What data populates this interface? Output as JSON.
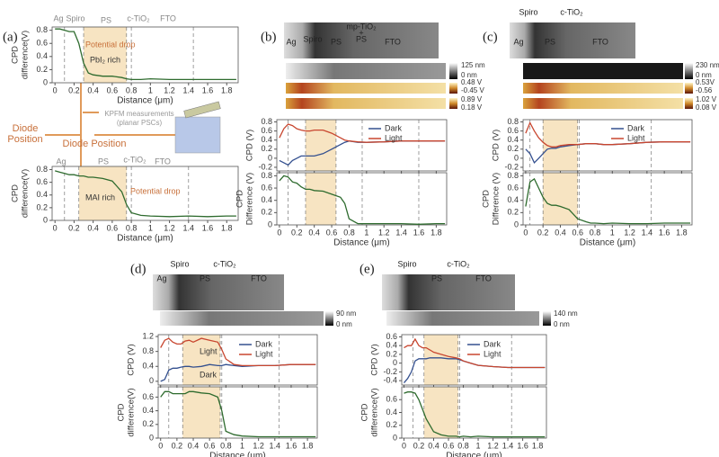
{
  "figure": {
    "diode_labels": [
      "Diode",
      "Position",
      "Diode Position"
    ],
    "kpfm_label": [
      "KPFM measurements",
      "(planar PSCs)"
    ]
  },
  "chart_data": [
    {
      "type": "line",
      "panel": "(a)",
      "layer_labels": [
        "Ag",
        "Spiro",
        "PS",
        "c-TiO₂",
        "FTO"
      ],
      "annotations": [
        "Potential drop",
        "PbI₂ rich"
      ],
      "ylabel": [
        "CPD",
        "difference(V)"
      ],
      "xlabel": "Distance (μm)",
      "x": [
        0,
        0.05,
        0.1,
        0.15,
        0.2,
        0.25,
        0.3,
        0.35,
        0.4,
        0.5,
        0.6,
        0.7,
        0.75,
        0.8,
        0.9,
        1.0,
        1.2,
        1.4,
        1.6,
        1.8,
        1.9
      ],
      "series": [
        {
          "name": null,
          "color": "#2e6b2e",
          "values": [
            0.82,
            0.82,
            0.8,
            0.78,
            0.78,
            0.6,
            0.3,
            0.15,
            0.12,
            0.1,
            0.1,
            0.08,
            0.06,
            0.05,
            0.05,
            0.06,
            0.05,
            0.05,
            0.05,
            0.05,
            0.05
          ]
        }
      ],
      "xlim": [
        -0.03,
        1.92
      ],
      "ylim": [
        0,
        0.85
      ],
      "xticks": [
        0,
        0.2,
        0.4,
        0.6,
        0.8,
        1,
        1.2,
        1.4,
        1.6,
        1.8
      ],
      "yticks": [
        0,
        0.2,
        0.4,
        0.6,
        0.8
      ],
      "boundaries": [
        0.1,
        0.3,
        0.75,
        0.8,
        1.45
      ],
      "shade": [
        0.3,
        0.75
      ]
    },
    {
      "type": "line",
      "layer_labels": [
        "Ag",
        "PS",
        "c-TiO₂",
        "FTO"
      ],
      "annotations": [
        "MAI rich",
        "Potential drop"
      ],
      "ylabel": [
        "CPD",
        "difference(V)"
      ],
      "xlabel": "Distance (μm)",
      "x": [
        0,
        0.05,
        0.1,
        0.15,
        0.2,
        0.25,
        0.3,
        0.35,
        0.4,
        0.5,
        0.6,
        0.7,
        0.75,
        0.8,
        0.9,
        1.0,
        1.2,
        1.4,
        1.6,
        1.8,
        1.9
      ],
      "series": [
        {
          "name": null,
          "color": "#2e6b2e",
          "values": [
            0.78,
            0.76,
            0.74,
            0.72,
            0.72,
            0.7,
            0.7,
            0.68,
            0.68,
            0.66,
            0.62,
            0.45,
            0.25,
            0.12,
            0.08,
            0.07,
            0.06,
            0.07,
            0.06,
            0.07,
            0.07
          ]
        }
      ],
      "xlim": [
        -0.03,
        1.92
      ],
      "ylim": [
        0,
        0.85
      ],
      "xticks": [
        0,
        0.2,
        0.4,
        0.6,
        0.8,
        1,
        1.2,
        1.4,
        1.6,
        1.8
      ],
      "yticks": [
        0,
        0.2,
        0.4,
        0.6,
        0.8
      ],
      "boundaries": [
        0.1,
        0.25,
        0.75,
        0.8,
        1.4
      ],
      "shade": [
        0.25,
        0.75
      ]
    },
    {
      "type": "line",
      "panel": "(b)",
      "layer_labels": [
        "Ag",
        "Spiro",
        "PS",
        "mp-TiO₂",
        "+",
        "PS",
        "FTO"
      ],
      "scale_labels": [
        "125 nm",
        "0 nm",
        "0.48 V",
        "-0.45 V",
        "0.89 V",
        "0.18 V"
      ],
      "ylabel": [
        "CPD (V)"
      ],
      "x": [
        0,
        0.05,
        0.1,
        0.15,
        0.2,
        0.25,
        0.3,
        0.35,
        0.4,
        0.5,
        0.6,
        0.7,
        0.75,
        0.8,
        0.9,
        1.0,
        1.2,
        1.4,
        1.6,
        1.8,
        1.9
      ],
      "series": [
        {
          "name": "Dark",
          "color": "#34508f",
          "values": [
            -0.05,
            -0.1,
            -0.15,
            -0.05,
            0,
            0.05,
            0.05,
            0.05,
            0.05,
            0.1,
            0.2,
            0.3,
            0.35,
            0.38,
            0.35,
            0.35,
            0.36,
            0.38,
            0.38,
            0.38,
            0.38
          ]
        },
        {
          "name": "Light",
          "color": "#c8462f",
          "values": [
            0.45,
            0.65,
            0.75,
            0.72,
            0.65,
            0.62,
            0.6,
            0.6,
            0.62,
            0.62,
            0.55,
            0.45,
            0.4,
            0.38,
            0.36,
            0.35,
            0.36,
            0.38,
            0.38,
            0.38,
            0.38
          ]
        }
      ],
      "xlim": [
        -0.03,
        1.92
      ],
      "ylim": [
        -0.28,
        0.85
      ],
      "xticks": [
        0,
        0.2,
        0.4,
        0.6,
        0.8,
        1,
        1.2,
        1.4,
        1.6,
        1.8
      ],
      "yticks": [
        -0.2,
        0,
        0.2,
        0.4,
        0.6,
        0.8
      ],
      "boundaries": [
        0.1,
        0.3,
        0.65,
        0.95,
        1.6
      ],
      "shade": [
        0.3,
        0.65
      ]
    },
    {
      "type": "line",
      "ylabel": [
        "CPD",
        "Difference (V)"
      ],
      "xlabel": "Distance (μm)",
      "x": [
        0,
        0.05,
        0.1,
        0.15,
        0.2,
        0.25,
        0.3,
        0.35,
        0.4,
        0.5,
        0.6,
        0.7,
        0.75,
        0.8,
        0.9,
        1.0,
        1.2,
        1.4,
        1.6,
        1.8,
        1.9
      ],
      "series": [
        {
          "name": null,
          "color": "#2e6b2e",
          "values": [
            0.72,
            0.8,
            0.78,
            0.7,
            0.68,
            0.62,
            0.58,
            0.58,
            0.56,
            0.55,
            0.5,
            0.45,
            0.35,
            0.1,
            0.02,
            0.02,
            0.02,
            0.02,
            0.01,
            0.02,
            0.02
          ]
        }
      ],
      "xlim": [
        -0.03,
        1.92
      ],
      "ylim": [
        0,
        0.85
      ],
      "xticks": [
        0,
        0.2,
        0.4,
        0.6,
        0.8,
        1,
        1.2,
        1.4,
        1.6,
        1.8
      ],
      "yticks": [
        0,
        0.2,
        0.4,
        0.6,
        0.8
      ],
      "boundaries": [
        0.1,
        0.3,
        0.65,
        0.95,
        1.6
      ],
      "shade": [
        0.3,
        0.65
      ]
    },
    {
      "type": "line",
      "panel": "(c)",
      "layer_labels": [
        "Spiro",
        "c-TiO₂",
        "Ag",
        "PS",
        "FTO"
      ],
      "scale_labels": [
        "230 nm",
        "0 nm",
        "0.53V",
        "-0.56",
        "1.02 V",
        "0.08 V"
      ],
      "ylabel": [
        "CPD (V)"
      ],
      "x": [
        0,
        0.05,
        0.1,
        0.15,
        0.2,
        0.25,
        0.3,
        0.35,
        0.4,
        0.5,
        0.6,
        0.7,
        0.75,
        0.8,
        0.9,
        1.0,
        1.2,
        1.4,
        1.6,
        1.8,
        1.9
      ],
      "series": [
        {
          "name": "Dark",
          "color": "#34508f",
          "values": [
            0.2,
            0.1,
            -0.1,
            0,
            0.1,
            0.2,
            0.22,
            0.22,
            0.25,
            0.28,
            0.3,
            0.32,
            0.32,
            0.32,
            0.3,
            0.3,
            0.32,
            0.35,
            0.36,
            0.36,
            0.36
          ]
        },
        {
          "name": "Light",
          "color": "#c8462f",
          "values": [
            0.55,
            0.78,
            0.6,
            0.45,
            0.35,
            0.28,
            0.25,
            0.25,
            0.28,
            0.3,
            0.3,
            0.32,
            0.32,
            0.32,
            0.3,
            0.3,
            0.32,
            0.35,
            0.36,
            0.36,
            0.36
          ]
        }
      ],
      "xlim": [
        -0.03,
        1.92
      ],
      "ylim": [
        -0.28,
        0.85
      ],
      "xticks": [
        0,
        0.2,
        0.4,
        0.6,
        0.8,
        1,
        1.2,
        1.4,
        1.6,
        1.8
      ],
      "yticks": [
        -0.2,
        0,
        0.2,
        0.4,
        0.6,
        0.8
      ],
      "boundaries": [
        0.05,
        0.2,
        0.6,
        0.62,
        1.45
      ],
      "shade": [
        0.2,
        0.6
      ]
    },
    {
      "type": "line",
      "ylabel": [
        "CPD",
        "Difference (V)"
      ],
      "xlabel": "Distance (μm)",
      "x": [
        0,
        0.05,
        0.1,
        0.15,
        0.2,
        0.25,
        0.3,
        0.35,
        0.4,
        0.5,
        0.6,
        0.7,
        0.75,
        0.8,
        0.9,
        1.0,
        1.2,
        1.4,
        1.6,
        1.8,
        1.9
      ],
      "series": [
        {
          "name": null,
          "color": "#2e6b2e",
          "values": [
            0.3,
            0.7,
            0.75,
            0.6,
            0.45,
            0.35,
            0.32,
            0.32,
            0.3,
            0.25,
            0.1,
            0.05,
            0.03,
            0.03,
            0.02,
            0.03,
            0.02,
            0.02,
            0.03,
            0.03,
            0.03
          ]
        }
      ],
      "xlim": [
        -0.03,
        1.92
      ],
      "ylim": [
        0,
        0.85
      ],
      "xticks": [
        0,
        0.2,
        0.4,
        0.6,
        0.8,
        1,
        1.2,
        1.4,
        1.6,
        1.8
      ],
      "yticks": [
        0,
        0.2,
        0.4,
        0.6,
        0.8
      ],
      "boundaries": [
        0.05,
        0.2,
        0.6,
        0.62,
        1.45
      ],
      "shade": [
        0.2,
        0.6
      ]
    },
    {
      "type": "line",
      "panel": "(d)",
      "layer_labels": [
        "Spiro",
        "c-TiO₂",
        "Ag",
        "PS",
        "FTO"
      ],
      "scale_labels": [
        "90 nm",
        "0 nm"
      ],
      "annotations": [
        "Light",
        "Dark"
      ],
      "ylabel": [
        "CPD (V)"
      ],
      "x": [
        0,
        0.05,
        0.1,
        0.15,
        0.2,
        0.25,
        0.3,
        0.35,
        0.4,
        0.5,
        0.6,
        0.7,
        0.75,
        0.8,
        0.9,
        1.0,
        1.2,
        1.4,
        1.6,
        1.8,
        1.9
      ],
      "series": [
        {
          "name": "Dark",
          "color": "#34508f",
          "values": [
            0,
            0.05,
            0.3,
            0.35,
            0.35,
            0.38,
            0.4,
            0.4,
            0.38,
            0.4,
            0.45,
            0.42,
            0.42,
            0.45,
            0.42,
            0.4,
            0.42,
            0.42,
            0.45,
            0.45,
            0.45
          ]
        },
        {
          "name": "Light",
          "color": "#c8462f",
          "values": [
            0.9,
            1.1,
            1.15,
            1.05,
            1.0,
            1.0,
            1.08,
            1.1,
            1.05,
            1.15,
            1.1,
            1.05,
            0.85,
            0.6,
            0.45,
            0.42,
            0.42,
            0.42,
            0.45,
            0.45,
            0.45
          ]
        }
      ],
      "xlim": [
        -0.03,
        1.92
      ],
      "ylim": [
        -0.1,
        1.25
      ],
      "xticks": [
        0,
        0.2,
        0.4,
        0.6,
        0.8,
        1,
        1.2,
        1.4,
        1.6,
        1.8
      ],
      "yticks": [
        0,
        0.4,
        0.8,
        1.2
      ],
      "boundaries": [
        0.1,
        0.27,
        0.73,
        0.75,
        1.45
      ],
      "shade": [
        0.27,
        0.73
      ]
    },
    {
      "type": "line",
      "ylabel": [
        "CPD",
        "difference(V)"
      ],
      "xlabel": "Distance (μm)",
      "x": [
        0,
        0.05,
        0.1,
        0.15,
        0.2,
        0.25,
        0.3,
        0.35,
        0.4,
        0.5,
        0.6,
        0.7,
        0.75,
        0.8,
        0.9,
        1.0,
        1.2,
        1.4,
        1.6,
        1.8,
        1.9
      ],
      "series": [
        {
          "name": null,
          "color": "#2e6b2e",
          "values": [
            0.6,
            0.68,
            0.68,
            0.65,
            0.65,
            0.65,
            0.65,
            0.68,
            0.68,
            0.66,
            0.65,
            0.6,
            0.4,
            0.1,
            0.05,
            0.03,
            0.02,
            0.02,
            0.02,
            0.02,
            0.02
          ]
        }
      ],
      "xlim": [
        -0.03,
        1.92
      ],
      "ylim": [
        0,
        0.75
      ],
      "xticks": [
        0,
        0.2,
        0.4,
        0.6,
        0.8,
        1,
        1.2,
        1.4,
        1.6,
        1.8
      ],
      "yticks": [
        0,
        0.2,
        0.4,
        0.6
      ],
      "boundaries": [
        0.1,
        0.27,
        0.73,
        0.75,
        1.45
      ],
      "shade": [
        0.27,
        0.73
      ]
    },
    {
      "type": "line",
      "panel": "(e)",
      "layer_labels": [
        "Spiro",
        "c-TiO₂",
        "PS",
        "FTO"
      ],
      "scale_labels": [
        "140 nm",
        "0 nm"
      ],
      "ylabel": [
        "CPD (V)"
      ],
      "x": [
        0,
        0.05,
        0.1,
        0.15,
        0.2,
        0.25,
        0.3,
        0.35,
        0.4,
        0.5,
        0.6,
        0.7,
        0.75,
        0.8,
        0.9,
        1.0,
        1.2,
        1.4,
        1.6,
        1.8,
        1.9
      ],
      "series": [
        {
          "name": "Dark",
          "color": "#34508f",
          "values": [
            -0.45,
            -0.35,
            -0.2,
            0.05,
            0.1,
            0.1,
            0.1,
            0.12,
            0.12,
            0.12,
            0.1,
            0.1,
            0.08,
            0.05,
            0,
            -0.05,
            -0.08,
            -0.1,
            -0.1,
            -0.1,
            -0.1
          ]
        },
        {
          "name": "Light",
          "color": "#c8462f",
          "values": [
            0.35,
            0.4,
            0.4,
            0.55,
            0.4,
            0.35,
            0.35,
            0.3,
            0.25,
            0.2,
            0.15,
            0.12,
            0.1,
            0.05,
            0,
            -0.05,
            -0.08,
            -0.1,
            -0.1,
            -0.1,
            -0.1
          ]
        }
      ],
      "xlim": [
        -0.03,
        1.92
      ],
      "ylim": [
        -0.5,
        0.65
      ],
      "xticks": [
        0,
        0.2,
        0.4,
        0.6,
        0.8,
        1,
        1.2,
        1.4,
        1.6,
        1.8
      ],
      "yticks": [
        -0.4,
        -0.2,
        0,
        0.2,
        0.4,
        0.6
      ],
      "boundaries": [
        0.12,
        0.27,
        0.73,
        0.75,
        1.45
      ],
      "shade": [
        0.27,
        0.73
      ]
    },
    {
      "type": "line",
      "ylabel": [
        "CPD",
        "difference(V)"
      ],
      "xlabel": "Distance (μm)",
      "x": [
        0,
        0.05,
        0.1,
        0.15,
        0.2,
        0.25,
        0.3,
        0.35,
        0.4,
        0.5,
        0.6,
        0.7,
        0.75,
        0.8,
        0.9,
        1.0,
        1.2,
        1.4,
        1.6,
        1.8,
        1.9
      ],
      "series": [
        {
          "name": null,
          "color": "#2e6b2e",
          "values": [
            0.7,
            0.72,
            0.72,
            0.7,
            0.6,
            0.45,
            0.3,
            0.2,
            0.1,
            0.05,
            0.03,
            0.03,
            0.02,
            0.03,
            0.02,
            0.03,
            0.02,
            0.02,
            0.02,
            0.02,
            0.02
          ]
        }
      ],
      "xlim": [
        -0.03,
        1.92
      ],
      "ylim": [
        0,
        0.8
      ],
      "xticks": [
        0,
        0.2,
        0.4,
        0.6,
        0.8,
        1,
        1.2,
        1.4,
        1.6,
        1.8
      ],
      "yticks": [
        0,
        0.2,
        0.4,
        0.6
      ],
      "boundaries": [
        0.12,
        0.27,
        0.73,
        0.75,
        1.45
      ],
      "shade": [
        0.27,
        0.73
      ]
    }
  ]
}
